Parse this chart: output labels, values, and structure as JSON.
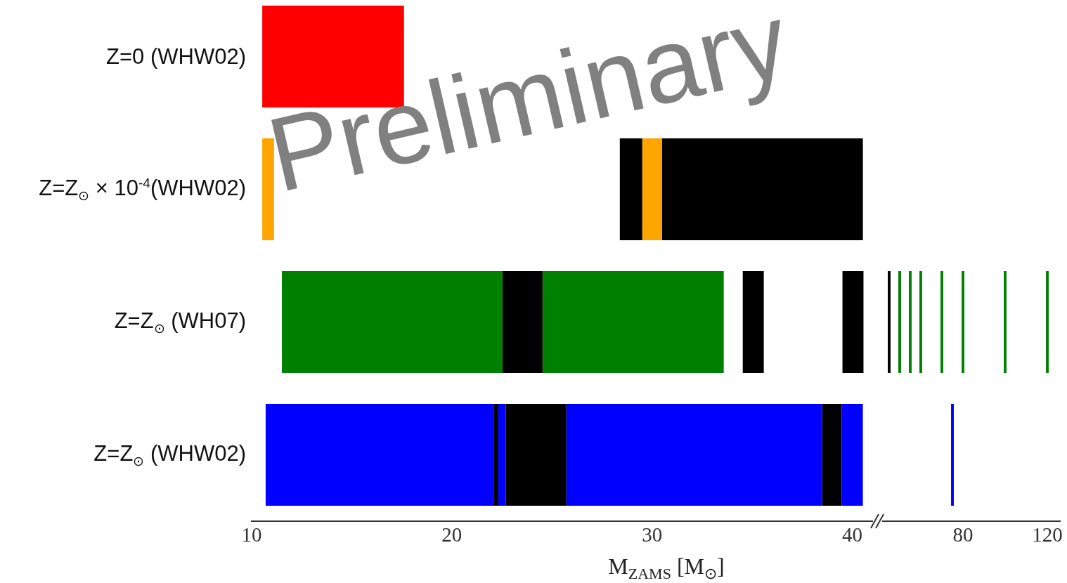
{
  "chart_data": [
    {
      "type": "bar",
      "orientation": "horizontal",
      "xlabel": "M$_{ZAMS}$ [M$_{⊙}$]",
      "annotations": [
        "Preliminary"
      ],
      "categories": [
        "Z=0 (WHW02)",
        "Z=Z$_{⊙}$ × 10$^{-4}$(WHW02)",
        "Z=Z$_{⊙}$ (WH07)",
        "Z=Z$_{⊙}$ (WHW02)"
      ],
      "xlim": [
        10,
        41
      ],
      "xticks": [
        10,
        20,
        30,
        40
      ],
      "series": [
        {
          "base": [
            10.53,
            10.53,
            11.51,
            10.7
          ],
          "values": [
            7.08,
            0.59,
            11.02,
            11.41
          ],
          "colors": [
            "#ff0000",
            "#ffa500",
            "#008000",
            "#0000ff"
          ]
        },
        {
          "base": [
            null,
            28.39,
            22.53,
            22.11
          ],
          "values": [
            null,
            1.12,
            2.0,
            0.21
          ],
          "colors": [
            "#000000",
            "#000000",
            "#000000",
            "#000000"
          ]
        },
        {
          "base": [
            null,
            29.51,
            24.53,
            22.32
          ],
          "values": [
            null,
            0.98,
            9.05,
            0.38
          ],
          "colors": [
            "#ffa500",
            "#ffa500",
            "#008000",
            "#0000ff"
          ]
        },
        {
          "base": [
            null,
            30.49,
            34.53,
            22.7
          ],
          "values": [
            null,
            10.04,
            1.05,
            3.02
          ],
          "colors": [
            "#000000",
            "#000000",
            "#000000",
            "#000000"
          ]
        },
        {
          "base": [
            null,
            null,
            39.51,
            25.72
          ],
          "values": [
            null,
            null,
            1.05,
            12.77
          ],
          "colors": [
            "#000000",
            "#000000",
            "#000000",
            "#0000ff"
          ]
        },
        {
          "base": [
            null,
            null,
            null,
            38.49
          ],
          "values": [
            null,
            null,
            null,
            0.98
          ],
          "colors": [
            "#000000",
            "#000000",
            "#000000",
            "#000000"
          ]
        },
        {
          "base": [
            null,
            null,
            null,
            39.47
          ],
          "values": [
            null,
            null,
            null,
            1.06
          ],
          "colors": [
            "#0000ff",
            "#0000ff",
            "#0000ff",
            "#0000ff"
          ]
        }
      ]
    },
    {
      "type": "bar",
      "orientation": "horizontal",
      "tick_labels": "x",
      "categories": [
        null,
        null,
        null,
        null
      ],
      "xlim": [
        42,
        126
      ],
      "xticks": [
        80,
        120
      ],
      "series": [
        {
          "base": [
            null,
            null,
            44.35,
            74.35
          ],
          "values": [
            null,
            null,
            1.3,
            1.3
          ],
          "colors": [
            "#000000",
            "#000000",
            "#000000",
            "#0000ff"
          ]
        },
        {
          "base": [
            null,
            null,
            49.35,
            null
          ],
          "values": [
            null,
            null,
            1.3,
            null
          ],
          "color": "#008000"
        },
        {
          "base": [
            null,
            null,
            54.35,
            null
          ],
          "values": [
            null,
            null,
            1.3,
            null
          ],
          "color": "#008000"
        },
        {
          "base": [
            null,
            null,
            59.35,
            null
          ],
          "values": [
            null,
            null,
            1.3,
            null
          ],
          "color": "#008000"
        },
        {
          "base": [
            null,
            null,
            69.35,
            null
          ],
          "values": [
            null,
            null,
            1.3,
            null
          ],
          "color": "#008000"
        },
        {
          "base": [
            null,
            null,
            79.35,
            null
          ],
          "values": [
            null,
            null,
            1.3,
            null
          ],
          "color": "#008000"
        },
        {
          "base": [
            null,
            null,
            99.35,
            null
          ],
          "values": [
            null,
            null,
            1.3,
            null
          ],
          "color": "#008000"
        },
        {
          "base": [
            null,
            null,
            119.35,
            null
          ],
          "values": [
            null,
            null,
            1.3,
            null
          ],
          "color": "#008000"
        }
      ]
    }
  ]
}
